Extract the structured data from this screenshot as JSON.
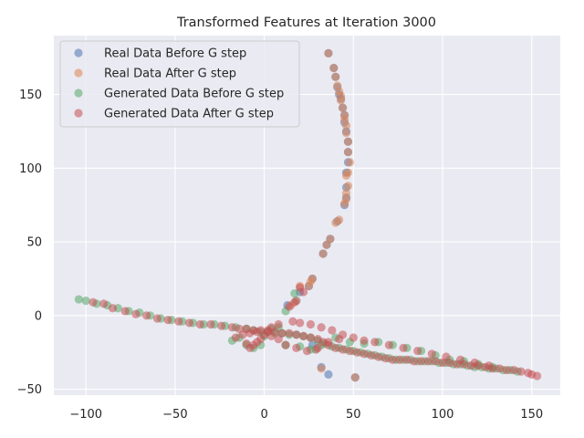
{
  "chart_data": {
    "type": "scatter",
    "title": "Transformed Features at Iteration 3000",
    "xlabel": "",
    "ylabel": "",
    "xlim": [
      -118,
      166
    ],
    "ylim": [
      -54,
      190
    ],
    "xticks": [
      -100,
      -50,
      0,
      50,
      100,
      150
    ],
    "xtick_labels": [
      "−100",
      "−50",
      "0",
      "50",
      "100",
      "150"
    ],
    "yticks": [
      -50,
      0,
      50,
      100,
      150
    ],
    "ytick_labels": [
      "−50",
      "0",
      "50",
      "100",
      "150"
    ],
    "grid": true,
    "background": "#eaeaf2",
    "legend_position": "top-left",
    "marker_alpha": 0.55,
    "series": [
      {
        "name": "Real Data Before G step",
        "color": "#4c72b0",
        "points": [
          [
            36,
            178
          ],
          [
            39,
            168
          ],
          [
            40,
            162
          ],
          [
            41,
            155
          ],
          [
            42,
            150
          ],
          [
            43,
            147
          ],
          [
            44,
            141
          ],
          [
            45,
            136
          ],
          [
            45,
            131
          ],
          [
            46,
            125
          ],
          [
            47,
            118
          ],
          [
            47,
            111
          ],
          [
            47,
            104
          ],
          [
            46,
            97
          ],
          [
            46,
            87
          ],
          [
            46,
            80
          ],
          [
            45,
            75
          ],
          [
            41,
            64
          ],
          [
            37,
            52
          ],
          [
            35,
            48
          ],
          [
            33,
            42
          ],
          [
            27,
            25
          ],
          [
            25,
            20
          ],
          [
            20,
            16
          ],
          [
            18,
            10
          ],
          [
            13,
            7
          ],
          [
            51,
            -42
          ],
          [
            32,
            -35
          ],
          [
            36,
            -40
          ],
          [
            29,
            -23
          ],
          [
            27,
            -20
          ]
        ]
      },
      {
        "name": "Real Data After G step",
        "color": "#dd8452",
        "points": [
          [
            36,
            178
          ],
          [
            39,
            168
          ],
          [
            40,
            162
          ],
          [
            41,
            156
          ],
          [
            42,
            152
          ],
          [
            43,
            149
          ],
          [
            43,
            146
          ],
          [
            44,
            141
          ],
          [
            45,
            136
          ],
          [
            45,
            133
          ],
          [
            46,
            129
          ],
          [
            46,
            124
          ],
          [
            47,
            118
          ],
          [
            47,
            111
          ],
          [
            48,
            104
          ],
          [
            47,
            97
          ],
          [
            46,
            95
          ],
          [
            47,
            88
          ],
          [
            46,
            83
          ],
          [
            46,
            79
          ],
          [
            45,
            76
          ],
          [
            42,
            65
          ],
          [
            40,
            63
          ],
          [
            37,
            52
          ],
          [
            35,
            48
          ],
          [
            33,
            42
          ],
          [
            27,
            25
          ],
          [
            26,
            23
          ],
          [
            25,
            20
          ],
          [
            20,
            20
          ],
          [
            18,
            10
          ],
          [
            15,
            7
          ],
          [
            51,
            -42
          ],
          [
            32,
            -36
          ],
          [
            29,
            -23
          ]
        ]
      },
      {
        "name": "Generated Data Before G step",
        "color": "#55a868",
        "points": [
          [
            -104,
            11
          ],
          [
            -100,
            10
          ],
          [
            -94,
            8
          ],
          [
            -88,
            7
          ],
          [
            -82,
            5
          ],
          [
            -76,
            3
          ],
          [
            -70,
            2
          ],
          [
            -64,
            0
          ],
          [
            -58,
            -2
          ],
          [
            -52,
            -3
          ],
          [
            -46,
            -4
          ],
          [
            -40,
            -5
          ],
          [
            -34,
            -6
          ],
          [
            -28,
            -6
          ],
          [
            -22,
            -7
          ],
          [
            -16,
            -8
          ],
          [
            -10,
            -9
          ],
          [
            -6,
            -10
          ],
          [
            -2,
            -11
          ],
          [
            2,
            -11
          ],
          [
            6,
            -12
          ],
          [
            10,
            -12
          ],
          [
            14,
            -13
          ],
          [
            18,
            -13
          ],
          [
            22,
            -14
          ],
          [
            26,
            -15
          ],
          [
            30,
            -17
          ],
          [
            34,
            -19
          ],
          [
            38,
            -21
          ],
          [
            42,
            -22
          ],
          [
            46,
            -23
          ],
          [
            50,
            -24
          ],
          [
            54,
            -25
          ],
          [
            58,
            -26
          ],
          [
            62,
            -27
          ],
          [
            66,
            -28
          ],
          [
            70,
            -29
          ],
          [
            74,
            -30
          ],
          [
            78,
            -30
          ],
          [
            82,
            -30
          ],
          [
            86,
            -31
          ],
          [
            90,
            -31
          ],
          [
            94,
            -31
          ],
          [
            98,
            -32
          ],
          [
            102,
            -32
          ],
          [
            106,
            -33
          ],
          [
            110,
            -33
          ],
          [
            114,
            -34
          ],
          [
            118,
            -35
          ],
          [
            122,
            -35
          ],
          [
            126,
            -36
          ],
          [
            130,
            -36
          ],
          [
            134,
            -37
          ],
          [
            138,
            -37
          ],
          [
            142,
            -38
          ],
          [
            -18,
            -17
          ],
          [
            -14,
            -15
          ],
          [
            -10,
            -20
          ],
          [
            -6,
            -22
          ],
          [
            -2,
            -20
          ],
          [
            0,
            -14
          ],
          [
            4,
            -9
          ],
          [
            8,
            -8
          ],
          [
            12,
            3
          ],
          [
            17,
            15
          ],
          [
            12,
            -20
          ],
          [
            20,
            -21
          ],
          [
            26,
            -23
          ],
          [
            32,
            -20
          ],
          [
            40,
            -15
          ],
          [
            48,
            -18
          ],
          [
            56,
            -19
          ],
          [
            64,
            -18
          ],
          [
            72,
            -20
          ],
          [
            80,
            -22
          ],
          [
            88,
            -24
          ],
          [
            96,
            -27
          ],
          [
            104,
            -30
          ],
          [
            112,
            -31
          ],
          [
            120,
            -33
          ],
          [
            128,
            -35
          ]
        ]
      },
      {
        "name": "Generated Data After G step",
        "color": "#c44e52",
        "points": [
          [
            -96,
            9
          ],
          [
            -90,
            8
          ],
          [
            -85,
            5
          ],
          [
            -78,
            3
          ],
          [
            -72,
            1
          ],
          [
            -66,
            0
          ],
          [
            -60,
            -2
          ],
          [
            -54,
            -3
          ],
          [
            -48,
            -4
          ],
          [
            -42,
            -5
          ],
          [
            -36,
            -6
          ],
          [
            -30,
            -6
          ],
          [
            -24,
            -7
          ],
          [
            -18,
            -8
          ],
          [
            -14,
            -9
          ],
          [
            -10,
            -9
          ],
          [
            -6,
            -10
          ],
          [
            -2,
            -10
          ],
          [
            2,
            -11
          ],
          [
            6,
            -11
          ],
          [
            10,
            -12
          ],
          [
            14,
            -12
          ],
          [
            18,
            -13
          ],
          [
            22,
            -14
          ],
          [
            26,
            -15
          ],
          [
            30,
            -16
          ],
          [
            33,
            -18
          ],
          [
            36,
            -20
          ],
          [
            40,
            -22
          ],
          [
            44,
            -23
          ],
          [
            48,
            -24
          ],
          [
            52,
            -25
          ],
          [
            56,
            -26
          ],
          [
            60,
            -27
          ],
          [
            64,
            -28
          ],
          [
            68,
            -29
          ],
          [
            72,
            -30
          ],
          [
            76,
            -30
          ],
          [
            80,
            -30
          ],
          [
            84,
            -31
          ],
          [
            88,
            -31
          ],
          [
            92,
            -31
          ],
          [
            96,
            -31
          ],
          [
            100,
            -32
          ],
          [
            104,
            -32
          ],
          [
            108,
            -33
          ],
          [
            112,
            -33
          ],
          [
            116,
            -34
          ],
          [
            120,
            -34
          ],
          [
            124,
            -35
          ],
          [
            128,
            -36
          ],
          [
            132,
            -36
          ],
          [
            136,
            -37
          ],
          [
            140,
            -37
          ],
          [
            144,
            -38
          ],
          [
            148,
            -39
          ],
          [
            150,
            -40
          ],
          [
            153,
            -41
          ],
          [
            -16,
            -15
          ],
          [
            -12,
            -13
          ],
          [
            -10,
            -19
          ],
          [
            -8,
            -22
          ],
          [
            -6,
            -20
          ],
          [
            -4,
            -18
          ],
          [
            -2,
            -16
          ],
          [
            0,
            -13
          ],
          [
            2,
            -10
          ],
          [
            4,
            -8
          ],
          [
            8,
            -6
          ],
          [
            16,
            -4
          ],
          [
            20,
            -5
          ],
          [
            26,
            -6
          ],
          [
            32,
            -8
          ],
          [
            38,
            -10
          ],
          [
            44,
            -13
          ],
          [
            50,
            -15
          ],
          [
            56,
            -17
          ],
          [
            62,
            -18
          ],
          [
            70,
            -20
          ],
          [
            78,
            -22
          ],
          [
            86,
            -24
          ],
          [
            94,
            -26
          ],
          [
            102,
            -28
          ],
          [
            110,
            -30
          ],
          [
            118,
            -32
          ],
          [
            126,
            -34
          ],
          [
            14,
            6
          ],
          [
            17,
            9
          ],
          [
            20,
            19
          ],
          [
            22,
            16
          ],
          [
            12,
            -20
          ],
          [
            18,
            -22
          ],
          [
            24,
            -24
          ],
          [
            30,
            -22
          ],
          [
            36,
            -18
          ],
          [
            42,
            -16
          ],
          [
            -8,
            -12
          ],
          [
            -4,
            -11
          ],
          [
            4,
            -14
          ],
          [
            8,
            -16
          ]
        ]
      }
    ]
  }
}
